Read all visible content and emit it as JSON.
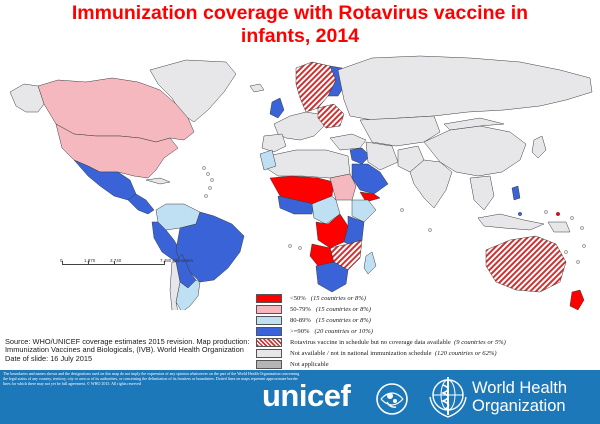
{
  "title": {
    "line1": "Immunization coverage with Rotavirus vaccine in",
    "line2": "infants, 2014"
  },
  "map": {
    "colors": {
      "lt50": "#ff0000",
      "r50_79": "#f5b8bf",
      "r80_89": "#bfe0f3",
      "gte90": "#3a63d8",
      "hatch": "#cc3333",
      "not_available": "#e7e7ea",
      "not_applicable": "#b5b5b5",
      "ocean": "#ffffff",
      "border": "#3c3c3c"
    },
    "scale": {
      "labels": [
        "0",
        "1,870",
        "3,740",
        "7,480 kilometers"
      ]
    }
  },
  "legend": [
    {
      "label": "<50%",
      "note": "(15 countries or 8%)",
      "color": "#ff0000",
      "pattern": "solid"
    },
    {
      "label": "50-79%",
      "note": "(15 countries or 8%)",
      "color": "#f5b8bf",
      "pattern": "solid"
    },
    {
      "label": "80-89%",
      "note": "(15 countries or 8%)",
      "color": "#bfe0f3",
      "pattern": "solid"
    },
    {
      "label": ">=90%",
      "note": "(20 countries or 10%)",
      "color": "#3a63d8",
      "pattern": "solid"
    },
    {
      "label": "Rotavirus vaccine in schedule but no coverage data available",
      "note": "(9 countries or 5%)",
      "color": "#cc3333",
      "pattern": "hatch"
    },
    {
      "label": "Not available / not in national immunization schedule",
      "note": "(120 countries or 62%)",
      "color": "#e7e7ea",
      "pattern": "solid"
    },
    {
      "label": "Not applicable",
      "note": "",
      "color": "#b5b5b5",
      "pattern": "solid"
    }
  ],
  "source": {
    "line1": "Source: WHO/UNICEF coverage estimates 2015 revision. Map production:",
    "line2": "Immunization Vaccines and Biologicals, (IVB). World Health Organization",
    "line3": "Date of slide: 16 July 2015"
  },
  "footer": {
    "disclaimer": "The boundaries and names shown and the designations used on this map do not imply the expression of any opinion whatsoever on the part of the World Health Organization concerning the legal status of any country, territory, city or area or of its authorities, or concerning the delimitation of its frontiers or boundaries. Dotted lines on maps represent approximate border lines for which there may not yet be full agreement. © WHO 2015. All rights reserved",
    "unicef": "unicef",
    "who_line1": "World Health",
    "who_line2": "Organization",
    "background": "#1d78b9"
  }
}
